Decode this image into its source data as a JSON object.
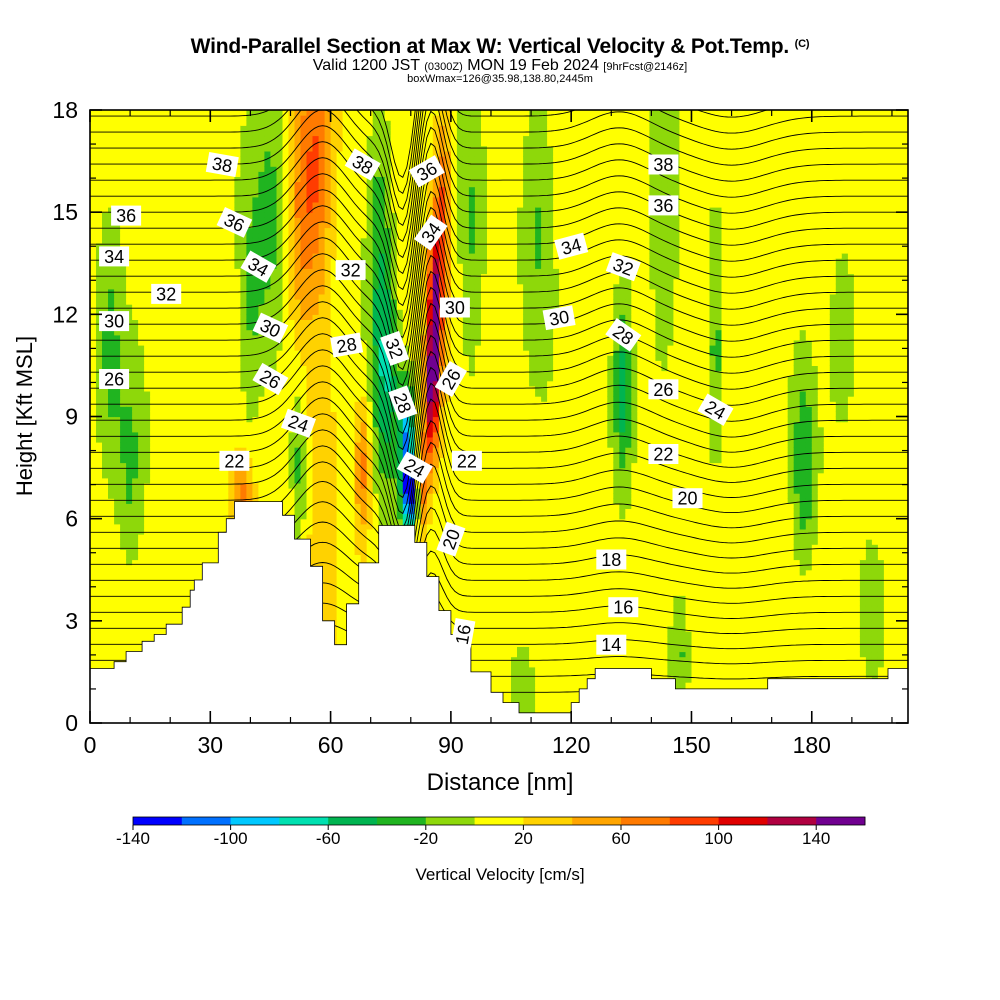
{
  "header": {
    "title": "Wind-Parallel Section at Max W: Vertical Velocity & Pot.Temp.",
    "copyright": "(C)",
    "valid_prefix": "Valid 1200 JST",
    "valid_utc": "(0300Z)",
    "valid_date": "MON 19 Feb 2024",
    "forecast": "[9hrFcst@2146z]",
    "box_info": "boxWmax=126@35.98,138.80,2445m"
  },
  "chart_data": {
    "type": "heatmap",
    "title": "Wind-Parallel Section at Max W: Vertical Velocity & Pot.Temp.",
    "xlabel": "Distance [nm]",
    "ylabel": "Height [Kft MSL]",
    "xlim": [
      0,
      204
    ],
    "ylim": [
      0,
      18
    ],
    "x_ticks": [
      "0",
      "30",
      "60",
      "90",
      "120",
      "150",
      "180"
    ],
    "y_ticks": [
      "0",
      "3",
      "6",
      "9",
      "12",
      "15",
      "18"
    ],
    "colorbar": {
      "label": "Vertical Velocity [cm/s]",
      "min": -140,
      "max": 160,
      "step": 20,
      "tick_labels": [
        "-140",
        "-100",
        "-60",
        "-20",
        "20",
        "60",
        "100",
        "140"
      ],
      "colors": [
        "#0000ff",
        "#0070ff",
        "#00c8ff",
        "#00e0b0",
        "#00b450",
        "#20b420",
        "#8ed80a",
        "#ffff00",
        "#ffd200",
        "#ffa500",
        "#ff7a00",
        "#ff3c00",
        "#e00000",
        "#b00040",
        "#700090"
      ]
    },
    "terrain": [
      [
        0,
        1.6
      ],
      [
        6,
        1.6
      ],
      [
        6,
        1.8
      ],
      [
        9,
        1.8
      ],
      [
        9,
        2.1
      ],
      [
        13,
        2.1
      ],
      [
        13,
        2.4
      ],
      [
        16,
        2.4
      ],
      [
        16,
        2.6
      ],
      [
        19,
        2.6
      ],
      [
        19,
        2.9
      ],
      [
        23,
        2.9
      ],
      [
        23,
        3.4
      ],
      [
        25,
        3.4
      ],
      [
        25,
        3.9
      ],
      [
        26,
        3.9
      ],
      [
        26,
        4.2
      ],
      [
        28,
        4.2
      ],
      [
        28,
        4.7
      ],
      [
        32,
        4.7
      ],
      [
        32,
        5.6
      ],
      [
        34,
        5.6
      ],
      [
        34,
        6.0
      ],
      [
        36,
        6.0
      ],
      [
        36,
        6.5
      ],
      [
        48,
        6.5
      ],
      [
        48,
        6.1
      ],
      [
        51,
        6.1
      ],
      [
        51,
        5.4
      ],
      [
        55,
        5.4
      ],
      [
        55,
        4.6
      ],
      [
        58,
        4.6
      ],
      [
        58,
        3.0
      ],
      [
        61,
        3.0
      ],
      [
        61,
        2.3
      ],
      [
        64,
        2.3
      ],
      [
        64,
        3.5
      ],
      [
        67,
        3.5
      ],
      [
        67,
        4.7
      ],
      [
        72,
        4.7
      ],
      [
        72,
        5.8
      ],
      [
        81,
        5.8
      ],
      [
        81,
        5.3
      ],
      [
        84,
        5.3
      ],
      [
        84,
        4.3
      ],
      [
        87,
        4.3
      ],
      [
        87,
        3.3
      ],
      [
        90,
        3.3
      ],
      [
        90,
        2.6
      ],
      [
        92,
        2.6
      ],
      [
        92,
        2.3
      ],
      [
        95,
        2.3
      ],
      [
        95,
        1.5
      ],
      [
        100,
        1.5
      ],
      [
        100,
        0.9
      ],
      [
        103,
        0.9
      ],
      [
        103,
        0.6
      ],
      [
        107,
        0.6
      ],
      [
        107,
        0.3
      ],
      [
        120,
        0.3
      ],
      [
        120,
        0.6
      ],
      [
        122,
        0.6
      ],
      [
        122,
        1.0
      ],
      [
        124,
        1.0
      ],
      [
        124,
        1.3
      ],
      [
        126,
        1.3
      ],
      [
        126,
        1.6
      ],
      [
        140,
        1.6
      ],
      [
        140,
        1.3
      ],
      [
        146,
        1.3
      ],
      [
        146,
        1.0
      ],
      [
        169,
        1.0
      ],
      [
        169,
        1.3
      ],
      [
        199,
        1.3
      ],
      [
        199,
        1.6
      ],
      [
        204,
        1.6
      ]
    ],
    "w_features": [
      {
        "x": 20,
        "z": 14,
        "w": -10,
        "sx": 16,
        "sz": 6
      },
      {
        "x": 5,
        "z": 11,
        "w": -30,
        "sx": 3,
        "sz": 4
      },
      {
        "x": 10,
        "z": 7.5,
        "w": -30,
        "sx": 3,
        "sz": 3
      },
      {
        "x": 45,
        "z": 15,
        "w": -30,
        "sx": 4,
        "sz": 5
      },
      {
        "x": 40,
        "z": 12,
        "w": -30,
        "sx": 3,
        "sz": 4
      },
      {
        "x": 57,
        "z": 16.5,
        "w": 50,
        "sx": 3,
        "sz": 3
      },
      {
        "x": 53,
        "z": 15,
        "w": 60,
        "sx": 3.5,
        "sz": 4
      },
      {
        "x": 58,
        "z": 9,
        "w": 30,
        "sx": 3,
        "sz": 5
      },
      {
        "x": 38,
        "z": 6.8,
        "w": 55,
        "sx": 2.5,
        "sz": 1.0
      },
      {
        "x": 52,
        "z": 7.5,
        "w": -40,
        "sx": 2,
        "sz": 2.5
      },
      {
        "x": 72,
        "z": 14,
        "w": -50,
        "sx": 3.5,
        "sz": 4
      },
      {
        "x": 74,
        "z": 10,
        "w": -60,
        "sx": 3,
        "sz": 3
      },
      {
        "x": 79,
        "z": 8,
        "w": -115,
        "sx": 2,
        "sz": 2
      },
      {
        "x": 80,
        "z": 6.6,
        "w": -90,
        "sx": 1.6,
        "sz": 1.0
      },
      {
        "x": 68,
        "z": 7.5,
        "w": 60,
        "sx": 2,
        "sz": 2
      },
      {
        "x": 86,
        "z": 12,
        "w": 125,
        "sx": 1.7,
        "sz": 2.5
      },
      {
        "x": 85,
        "z": 9.5,
        "w": 100,
        "sx": 1.7,
        "sz": 2.0
      },
      {
        "x": 83,
        "z": 7,
        "w": 60,
        "sx": 1.5,
        "sz": 1.5
      },
      {
        "x": 88,
        "z": 15,
        "w": 70,
        "sx": 2,
        "sz": 3
      },
      {
        "x": 95,
        "z": 14,
        "w": -30,
        "sx": 3,
        "sz": 5
      },
      {
        "x": 112,
        "z": 15,
        "w": -30,
        "sx": 4,
        "sz": 5
      },
      {
        "x": 108,
        "z": 1,
        "w": -30,
        "sx": 3,
        "sz": 1.5
      },
      {
        "x": 133,
        "z": 11,
        "w": -30,
        "sx": 3,
        "sz": 3.5
      },
      {
        "x": 133,
        "z": 9.5,
        "w": -40,
        "sx": 2,
        "sz": 2
      },
      {
        "x": 143,
        "z": 14,
        "w": -30,
        "sx": 4,
        "sz": 5
      },
      {
        "x": 156,
        "z": 10.5,
        "w": -40,
        "sx": 2,
        "sz": 3.5
      },
      {
        "x": 178,
        "z": 7.5,
        "w": -45,
        "sx": 3,
        "sz": 3
      },
      {
        "x": 188,
        "z": 12,
        "w": -25,
        "sx": 4,
        "sz": 3
      },
      {
        "x": 147,
        "z": 2,
        "w": -30,
        "sx": 2,
        "sz": 1.5
      },
      {
        "x": 195,
        "z": 3,
        "w": -25,
        "sx": 3,
        "sz": 2
      }
    ],
    "theta_labels": [
      {
        "text": "38",
        "x": 33,
        "z": 16.4,
        "rot": 10
      },
      {
        "text": "36",
        "x": 9,
        "z": 14.9,
        "rot": 0
      },
      {
        "text": "36",
        "x": 36,
        "z": 14.7,
        "rot": 25
      },
      {
        "text": "34",
        "x": 6,
        "z": 13.7,
        "rot": 0
      },
      {
        "text": "34",
        "x": 42,
        "z": 13.4,
        "rot": 30
      },
      {
        "text": "32",
        "x": 19,
        "z": 12.6,
        "rot": 0
      },
      {
        "text": "32",
        "x": 65,
        "z": 13.3,
        "rot": 0
      },
      {
        "text": "30",
        "x": 6,
        "z": 11.8,
        "rot": 0
      },
      {
        "text": "30",
        "x": 45,
        "z": 11.6,
        "rot": 25
      },
      {
        "text": "28",
        "x": 64,
        "z": 11.1,
        "rot": -10
      },
      {
        "text": "26",
        "x": 6,
        "z": 10.1,
        "rot": 0
      },
      {
        "text": "26",
        "x": 45,
        "z": 10.1,
        "rot": 30
      },
      {
        "text": "24",
        "x": 52,
        "z": 8.8,
        "rot": 20
      },
      {
        "text": "22",
        "x": 36,
        "z": 7.7,
        "rot": 0
      },
      {
        "text": "38",
        "x": 68,
        "z": 16.4,
        "rot": 30
      },
      {
        "text": "36",
        "x": 84,
        "z": 16.2,
        "rot": -30
      },
      {
        "text": "34",
        "x": 85,
        "z": 14.4,
        "rot": -55
      },
      {
        "text": "32",
        "x": 76,
        "z": 11.0,
        "rot": 70
      },
      {
        "text": "30",
        "x": 91,
        "z": 12.2,
        "rot": 0
      },
      {
        "text": "28",
        "x": 78,
        "z": 9.4,
        "rot": 70
      },
      {
        "text": "26",
        "x": 90,
        "z": 10.1,
        "rot": -60
      },
      {
        "text": "24",
        "x": 81,
        "z": 7.5,
        "rot": 30
      },
      {
        "text": "22",
        "x": 94,
        "z": 7.7,
        "rot": 0
      },
      {
        "text": "20",
        "x": 90,
        "z": 5.4,
        "rot": -70
      },
      {
        "text": "16",
        "x": 93,
        "z": 2.6,
        "rot": -80
      },
      {
        "text": "38",
        "x": 143,
        "z": 16.4,
        "rot": 0
      },
      {
        "text": "36",
        "x": 143,
        "z": 15.2,
        "rot": 0
      },
      {
        "text": "34",
        "x": 120,
        "z": 14.0,
        "rot": -15
      },
      {
        "text": "32",
        "x": 133,
        "z": 13.4,
        "rot": 20
      },
      {
        "text": "30",
        "x": 117,
        "z": 11.9,
        "rot": -10
      },
      {
        "text": "28",
        "x": 133,
        "z": 11.4,
        "rot": 35
      },
      {
        "text": "26",
        "x": 143,
        "z": 9.8,
        "rot": 0
      },
      {
        "text": "24",
        "x": 156,
        "z": 9.2,
        "rot": 30
      },
      {
        "text": "22",
        "x": 143,
        "z": 7.9,
        "rot": 0
      },
      {
        "text": "20",
        "x": 149,
        "z": 6.6,
        "rot": 0
      },
      {
        "text": "18",
        "x": 130,
        "z": 4.8,
        "rot": 0
      },
      {
        "text": "16",
        "x": 133,
        "z": 3.4,
        "rot": 0
      },
      {
        "text": "14",
        "x": 130,
        "z": 2.3,
        "rot": 0
      }
    ]
  }
}
